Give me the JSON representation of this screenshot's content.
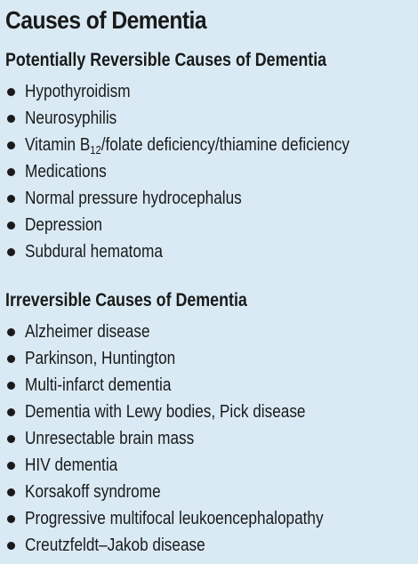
{
  "title": "Causes of Dementia",
  "sections": [
    {
      "heading": "Potentially Reversible Causes of Dementia",
      "items": [
        "Hypothyroidism",
        "Neurosyphilis",
        {
          "pre": "Vitamin B",
          "sub": "12",
          "post": "/folate deficiency/thiamine deficiency"
        },
        "Medications",
        "Normal pressure hydrocephalus",
        "Depression",
        "Subdural hematoma"
      ]
    },
    {
      "heading": "Irreversible Causes of Dementia",
      "items": [
        "Alzheimer disease",
        "Parkinson, Huntington",
        "Multi-infarct dementia",
        "Dementia with Lewy bodies, Pick disease",
        "Unresectable brain mass",
        "HIV dementia",
        "Korsakoff syndrome",
        "Progressive multifocal leukoencephalopathy",
        "Creutzfeldt–Jakob disease"
      ]
    }
  ]
}
